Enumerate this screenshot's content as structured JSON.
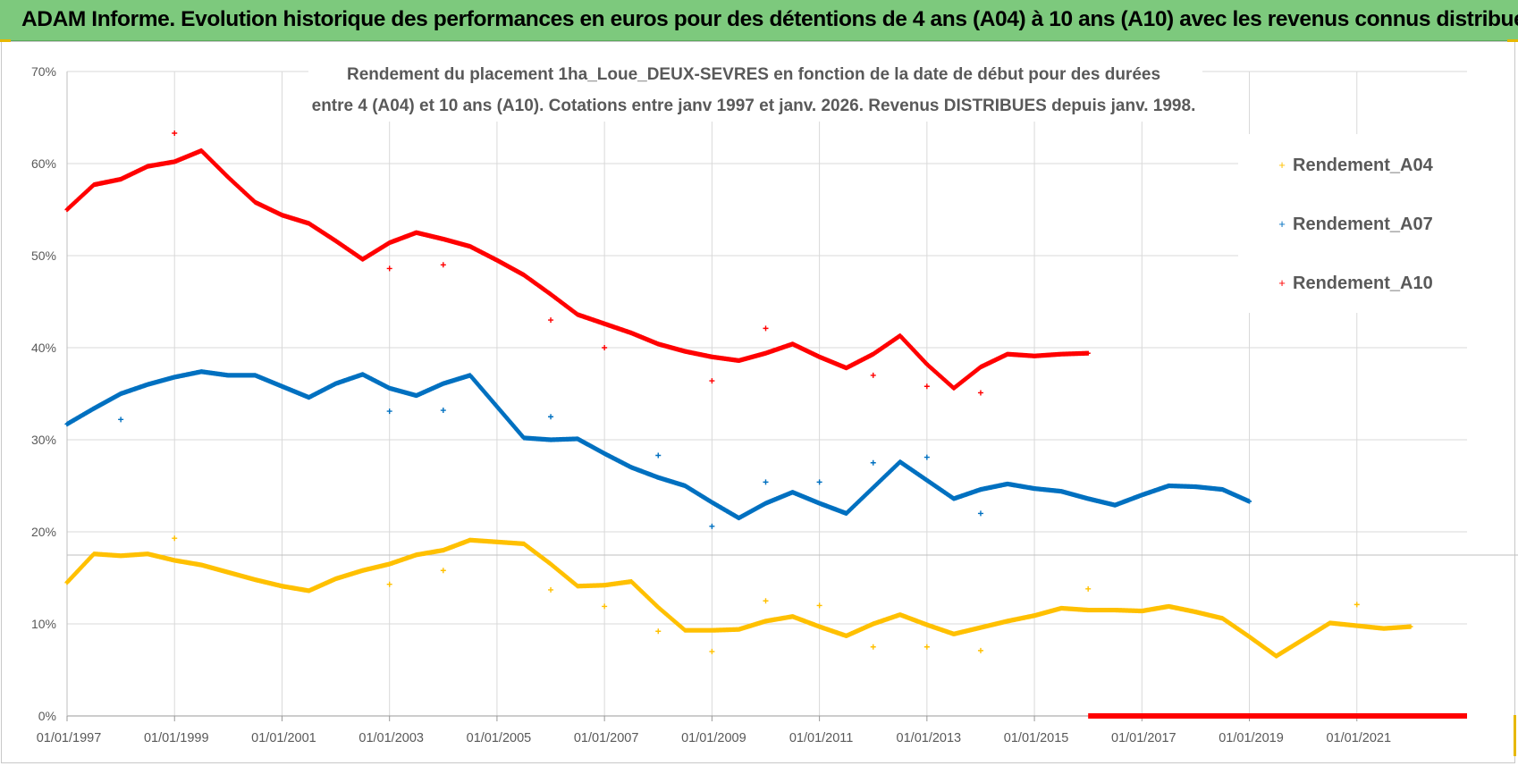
{
  "banner": {
    "title": "ADAM Informe. Evolution historique des performances en euros pour des détentions de 4 ans (A04) à 10 ans (A10) avec les revenus connus distribués"
  },
  "colors": {
    "banner": "#7dc97d",
    "a04": "#ffc000",
    "a07": "#0070c0",
    "a10": "#ff0000",
    "grid": "#d9d9d9",
    "axis_text": "#595959"
  },
  "chart_data": {
    "type": "scatter",
    "title_line1": "Rendement du placement 1ha_Loue_DEUX-SEVRES en fonction de la date de début pour des durées",
    "title_line2": "entre 4 (A04) et 10 ans (A10).  Cotations entre janv 1997 et janv. 2026. Revenus DISTRIBUES depuis janv. 1998.",
    "xlabel": "",
    "ylabel": "",
    "xlim": [
      1997.0,
      2023.05
    ],
    "ylim": [
      0,
      70
    ],
    "grid": true,
    "legend_position": "right",
    "x_tick_labels": [
      "01/01/1997",
      "01/01/1999",
      "01/01/2001",
      "01/01/2003",
      "01/01/2005",
      "01/01/2007",
      "01/01/2009",
      "01/01/2011",
      "01/01/2013",
      "01/01/2015",
      "01/01/2017",
      "01/01/2019",
      "01/01/2021"
    ],
    "x_ticks": [
      1997,
      1999,
      2001,
      2003,
      2005,
      2007,
      2009,
      2011,
      2013,
      2015,
      2017,
      2019,
      2021
    ],
    "y_tick_labels": [
      "0%",
      "10%",
      "20%",
      "30%",
      "40%",
      "50%",
      "60%",
      "70%"
    ],
    "y_ticks": [
      0,
      10,
      20,
      30,
      40,
      50,
      60,
      70
    ],
    "series": [
      {
        "name": "Rendement_A04",
        "color": "#ffc000",
        "points": [
          [
            1997.0,
            14.5
          ],
          [
            1997.5,
            17.6
          ],
          [
            1998.0,
            17.4
          ],
          [
            1998.5,
            17.6
          ],
          [
            1999.0,
            16.9
          ],
          [
            1999.5,
            16.4
          ],
          [
            2000.0,
            15.6
          ],
          [
            2000.5,
            14.8
          ],
          [
            2001.0,
            14.1
          ],
          [
            2001.5,
            13.6
          ],
          [
            2002.0,
            14.9
          ],
          [
            2002.5,
            15.8
          ],
          [
            2003.0,
            16.5
          ],
          [
            2003.5,
            17.5
          ],
          [
            2004.0,
            18.0
          ],
          [
            2004.5,
            19.1
          ],
          [
            2005.0,
            18.9
          ],
          [
            2005.5,
            18.7
          ],
          [
            2006.0,
            16.5
          ],
          [
            2006.5,
            14.1
          ],
          [
            2007.0,
            14.2
          ],
          [
            2007.5,
            14.6
          ],
          [
            2008.0,
            11.8
          ],
          [
            2008.5,
            9.3
          ],
          [
            2009.0,
            9.3
          ],
          [
            2009.5,
            9.4
          ],
          [
            2010.0,
            10.3
          ],
          [
            2010.5,
            10.8
          ],
          [
            2011.0,
            9.7
          ],
          [
            2011.5,
            8.7
          ],
          [
            2012.0,
            10.0
          ],
          [
            2012.5,
            11.0
          ],
          [
            2013.0,
            9.9
          ],
          [
            2013.5,
            8.9
          ],
          [
            2014.0,
            9.6
          ],
          [
            2014.5,
            10.3
          ],
          [
            2015.0,
            10.9
          ],
          [
            2015.5,
            11.7
          ],
          [
            2016.0,
            11.5
          ],
          [
            2016.5,
            11.5
          ],
          [
            2017.0,
            11.4
          ],
          [
            2017.5,
            11.9
          ],
          [
            2018.0,
            11.3
          ],
          [
            2018.5,
            10.6
          ],
          [
            2019.0,
            8.6
          ],
          [
            2019.5,
            6.5
          ],
          [
            2020.0,
            8.3
          ],
          [
            2020.5,
            10.1
          ],
          [
            2021.0,
            9.8
          ],
          [
            2021.5,
            9.5
          ],
          [
            2022.0,
            9.7
          ]
        ],
        "outliers": [
          [
            1999.0,
            19.3
          ],
          [
            2003.0,
            14.3
          ],
          [
            2004.0,
            15.8
          ],
          [
            2006.0,
            13.7
          ],
          [
            2007.0,
            11.9
          ],
          [
            2008.0,
            9.2
          ],
          [
            2009.0,
            7.0
          ],
          [
            2010.0,
            12.5
          ],
          [
            2011.0,
            12.0
          ],
          [
            2012.0,
            7.5
          ],
          [
            2013.0,
            7.5
          ],
          [
            2014.0,
            7.1
          ],
          [
            2016.0,
            13.8
          ],
          [
            2021.0,
            12.1
          ]
        ]
      },
      {
        "name": "Rendement_A07",
        "color": "#0070c0",
        "points": [
          [
            1997.0,
            31.7
          ],
          [
            1997.5,
            33.4
          ],
          [
            1998.0,
            35.0
          ],
          [
            1998.5,
            36.0
          ],
          [
            1999.0,
            36.8
          ],
          [
            1999.5,
            37.4
          ],
          [
            2000.0,
            37.0
          ],
          [
            2000.5,
            37.0
          ],
          [
            2001.0,
            35.8
          ],
          [
            2001.5,
            34.6
          ],
          [
            2002.0,
            36.1
          ],
          [
            2002.5,
            37.1
          ],
          [
            2003.0,
            35.6
          ],
          [
            2003.5,
            34.8
          ],
          [
            2004.0,
            36.1
          ],
          [
            2004.5,
            37.0
          ],
          [
            2005.0,
            33.6
          ],
          [
            2005.5,
            30.2
          ],
          [
            2006.0,
            30.0
          ],
          [
            2006.5,
            30.1
          ],
          [
            2007.0,
            28.5
          ],
          [
            2007.5,
            27.0
          ],
          [
            2008.0,
            25.9
          ],
          [
            2008.5,
            25.0
          ],
          [
            2009.0,
            23.2
          ],
          [
            2009.5,
            21.5
          ],
          [
            2010.0,
            23.1
          ],
          [
            2010.5,
            24.3
          ],
          [
            2011.0,
            23.1
          ],
          [
            2011.5,
            22.0
          ],
          [
            2012.0,
            24.8
          ],
          [
            2012.5,
            27.6
          ],
          [
            2013.0,
            25.6
          ],
          [
            2013.5,
            23.6
          ],
          [
            2014.0,
            24.6
          ],
          [
            2014.5,
            25.2
          ],
          [
            2015.0,
            24.7
          ],
          [
            2015.5,
            24.4
          ],
          [
            2016.0,
            23.6
          ],
          [
            2016.5,
            22.9
          ],
          [
            2017.0,
            24.0
          ],
          [
            2017.5,
            25.0
          ],
          [
            2018.0,
            24.9
          ],
          [
            2018.5,
            24.6
          ],
          [
            2019.0,
            23.3
          ]
        ],
        "outliers": [
          [
            1998.0,
            32.2
          ],
          [
            2003.0,
            33.1
          ],
          [
            2004.0,
            33.2
          ],
          [
            2006.0,
            32.5
          ],
          [
            2008.0,
            28.3
          ],
          [
            2009.0,
            20.6
          ],
          [
            2010.0,
            25.4
          ],
          [
            2011.0,
            25.4
          ],
          [
            2012.0,
            27.5
          ],
          [
            2013.0,
            28.1
          ],
          [
            2014.0,
            22.0
          ]
        ]
      },
      {
        "name": "Rendement_A10",
        "color": "#ff0000",
        "points": [
          [
            1997.0,
            55.0
          ],
          [
            1997.5,
            57.7
          ],
          [
            1998.0,
            58.3
          ],
          [
            1998.5,
            59.7
          ],
          [
            1999.0,
            60.2
          ],
          [
            1999.5,
            61.4
          ],
          [
            2000.0,
            58.5
          ],
          [
            2000.5,
            55.8
          ],
          [
            2001.0,
            54.4
          ],
          [
            2001.5,
            53.5
          ],
          [
            2002.0,
            51.6
          ],
          [
            2002.5,
            49.6
          ],
          [
            2003.0,
            51.4
          ],
          [
            2003.5,
            52.5
          ],
          [
            2004.0,
            51.8
          ],
          [
            2004.5,
            51.0
          ],
          [
            2005.0,
            49.5
          ],
          [
            2005.5,
            47.9
          ],
          [
            2006.0,
            45.8
          ],
          [
            2006.5,
            43.6
          ],
          [
            2007.0,
            42.6
          ],
          [
            2007.5,
            41.6
          ],
          [
            2008.0,
            40.4
          ],
          [
            2008.5,
            39.6
          ],
          [
            2009.0,
            39.0
          ],
          [
            2009.5,
            38.6
          ],
          [
            2010.0,
            39.4
          ],
          [
            2010.5,
            40.4
          ],
          [
            2011.0,
            39.0
          ],
          [
            2011.5,
            37.8
          ],
          [
            2012.0,
            39.3
          ],
          [
            2012.5,
            41.3
          ],
          [
            2013.0,
            38.2
          ],
          [
            2013.5,
            35.6
          ],
          [
            2014.0,
            37.9
          ],
          [
            2014.5,
            39.3
          ],
          [
            2015.0,
            39.1
          ],
          [
            2015.5,
            39.3
          ],
          [
            2016.0,
            39.4
          ]
        ],
        "outliers": [
          [
            1999.0,
            63.3
          ],
          [
            2003.0,
            48.6
          ],
          [
            2004.0,
            49.0
          ],
          [
            2006.0,
            43.0
          ],
          [
            2007.0,
            40.0
          ],
          [
            2009.0,
            36.4
          ],
          [
            2010.0,
            42.1
          ],
          [
            2012.0,
            37.0
          ],
          [
            2013.0,
            35.8
          ],
          [
            2014.0,
            35.1
          ]
        ],
        "zero_range": [
          2016.0,
          2023.05
        ]
      }
    ]
  }
}
